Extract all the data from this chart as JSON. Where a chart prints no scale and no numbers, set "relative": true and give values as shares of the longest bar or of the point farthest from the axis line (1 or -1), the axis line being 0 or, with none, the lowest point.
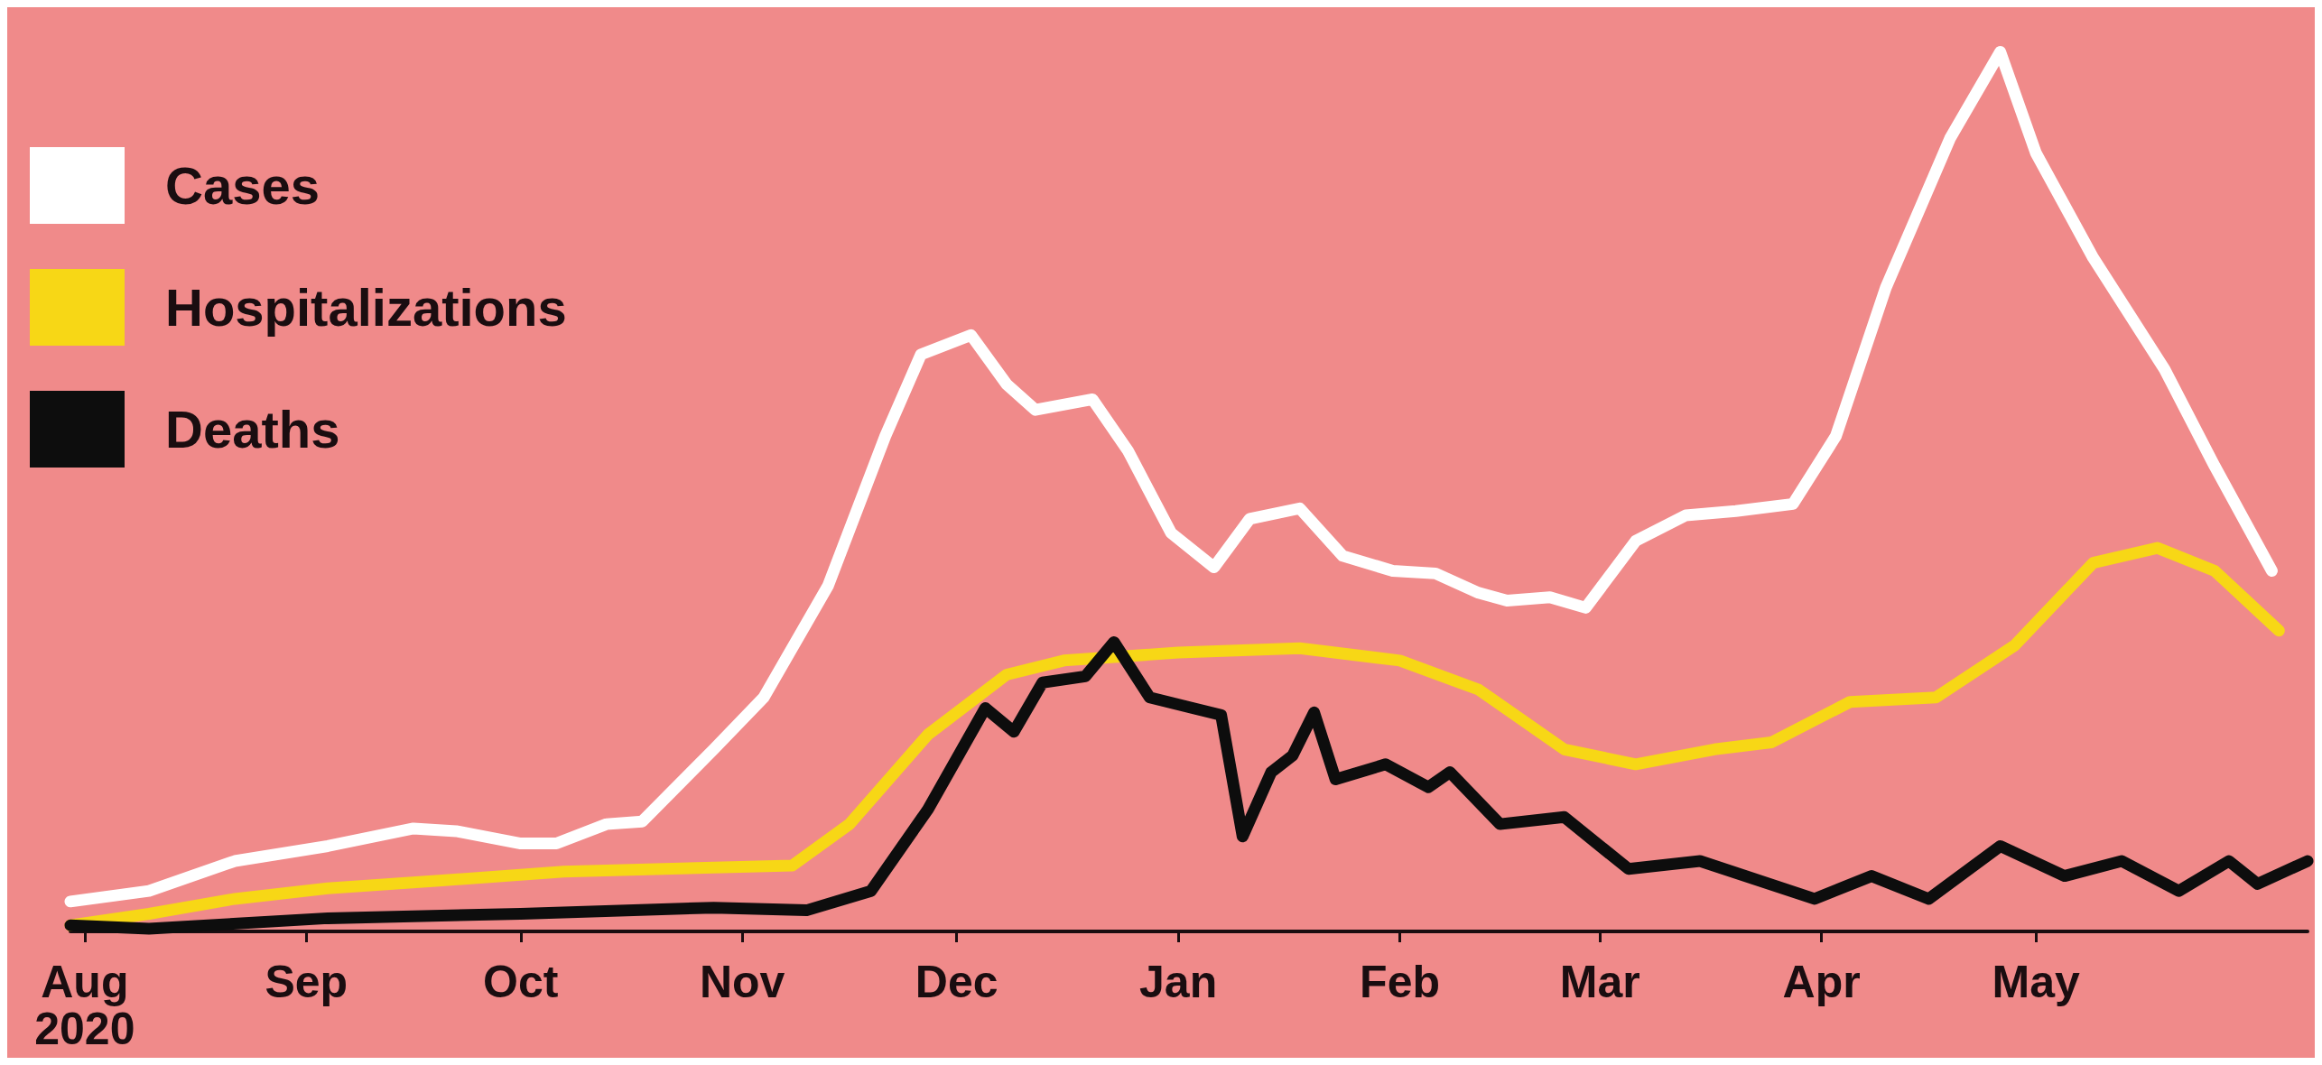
{
  "chart_data": {
    "type": "line",
    "relative": true,
    "legend": "top left",
    "grid": false,
    "marker": "none",
    "line_style": "solid",
    "xlim": [
      "2020-07-30",
      "2021-06-08"
    ],
    "xticks": [
      {
        "value": "2020-08-01",
        "label": "Aug\n2020"
      },
      {
        "value": "2020-09-01",
        "label": "Sep"
      },
      {
        "value": "2020-10-01",
        "label": "Oct"
      },
      {
        "value": "2020-11-01",
        "label": "Nov"
      },
      {
        "value": "2020-12-01",
        "label": "Dec"
      },
      {
        "value": "2021-01-01",
        "label": "Jan"
      },
      {
        "value": "2021-02-01",
        "label": "Feb"
      },
      {
        "value": "2021-03-01",
        "label": "Mar"
      },
      {
        "value": "2021-04-01",
        "label": "Apr"
      },
      {
        "value": "2021-05-01",
        "label": "May"
      }
    ],
    "series": [
      {
        "name": "Cases",
        "color": "#ffffff",
        "x": [
          "2020-07-30",
          "2020-08-10",
          "2020-08-22",
          "2020-09-04",
          "2020-09-16",
          "2020-09-22",
          "2020-10-01",
          "2020-10-06",
          "2020-10-13",
          "2020-10-18",
          "2020-10-28",
          "2020-11-04",
          "2020-11-13",
          "2020-11-21",
          "2020-11-26",
          "2020-12-03",
          "2020-12-08",
          "2020-12-12",
          "2020-12-20",
          "2020-12-25",
          "2020-12-31",
          "2021-01-06",
          "2021-01-11",
          "2021-01-18",
          "2021-01-24",
          "2021-01-31",
          "2021-02-06",
          "2021-02-12",
          "2021-02-16",
          "2021-02-22",
          "2021-02-27",
          "2021-03-06",
          "2021-03-13",
          "2021-03-20",
          "2021-03-28",
          "2021-04-03",
          "2021-04-10",
          "2021-04-19",
          "2021-04-26",
          "2021-05-01",
          "2021-05-09",
          "2021-05-19",
          "2021-05-26",
          "2021-06-03"
        ],
        "values": [
          0.034,
          0.046,
          0.08,
          0.097,
          0.117,
          0.114,
          0.1,
          0.1,
          0.122,
          0.125,
          0.207,
          0.266,
          0.393,
          0.563,
          0.656,
          0.678,
          0.622,
          0.593,
          0.605,
          0.546,
          0.453,
          0.414,
          0.469,
          0.481,
          0.427,
          0.41,
          0.407,
          0.385,
          0.376,
          0.38,
          0.368,
          0.444,
          0.473,
          0.478,
          0.486,
          0.563,
          0.732,
          0.902,
          1,
          0.885,
          0.766,
          0.639,
          0.529,
          0.41
        ]
      },
      {
        "name": "Hospitalizations",
        "color": "#f7d716",
        "x": [
          "2020-07-30",
          "2020-08-10",
          "2020-08-22",
          "2020-09-04",
          "2020-09-20",
          "2020-10-07",
          "2020-10-21",
          "2020-11-08",
          "2020-11-16",
          "2020-11-27",
          "2020-12-08",
          "2020-12-16",
          "2021-01-01",
          "2021-01-18",
          "2021-02-01",
          "2021-02-12",
          "2021-02-24",
          "2021-03-06",
          "2021-03-17",
          "2021-03-25",
          "2021-04-05",
          "2021-04-17",
          "2021-04-28",
          "2021-05-09",
          "2021-05-18",
          "2021-05-26",
          "2021-06-04"
        ],
        "values": [
          0.007,
          0.02,
          0.037,
          0.049,
          0.058,
          0.068,
          0.071,
          0.075,
          0.122,
          0.224,
          0.292,
          0.308,
          0.317,
          0.322,
          0.308,
          0.275,
          0.207,
          0.19,
          0.207,
          0.215,
          0.261,
          0.266,
          0.325,
          0.419,
          0.436,
          0.41,
          0.342
        ]
      },
      {
        "name": "Deaths",
        "color": "#0d0d0d",
        "x": [
          "2020-07-30",
          "2020-08-10",
          "2020-09-04",
          "2020-10-01",
          "2020-10-28",
          "2020-11-10",
          "2020-11-19",
          "2020-11-27",
          "2020-12-05",
          "2020-12-09",
          "2020-12-13",
          "2020-12-19",
          "2020-12-23",
          "2020-12-28",
          "2021-01-03",
          "2021-01-07",
          "2021-01-10",
          "2021-01-14",
          "2021-01-17",
          "2021-01-20",
          "2021-01-23",
          "2021-01-30",
          "2021-02-05",
          "2021-02-08",
          "2021-02-15",
          "2021-02-24",
          "2021-03-05",
          "2021-03-15",
          "2021-03-31",
          "2021-04-08",
          "2021-04-16",
          "2021-04-26",
          "2021-05-05",
          "2021-05-13",
          "2021-05-21",
          "2021-05-28",
          "2021-06-01",
          "2021-06-08"
        ],
        "values": [
          0.007,
          0.003,
          0.015,
          0.02,
          0.027,
          0.024,
          0.046,
          0.139,
          0.254,
          0.227,
          0.283,
          0.29,
          0.329,
          0.266,
          0.254,
          0.246,
          0.108,
          0.181,
          0.2,
          0.249,
          0.173,
          0.19,
          0.164,
          0.181,
          0.122,
          0.13,
          0.071,
          0.08,
          0.037,
          0.063,
          0.037,
          0.097,
          0.063,
          0.08,
          0.046,
          0.08,
          0.054,
          0.08
        ]
      }
    ]
  }
}
